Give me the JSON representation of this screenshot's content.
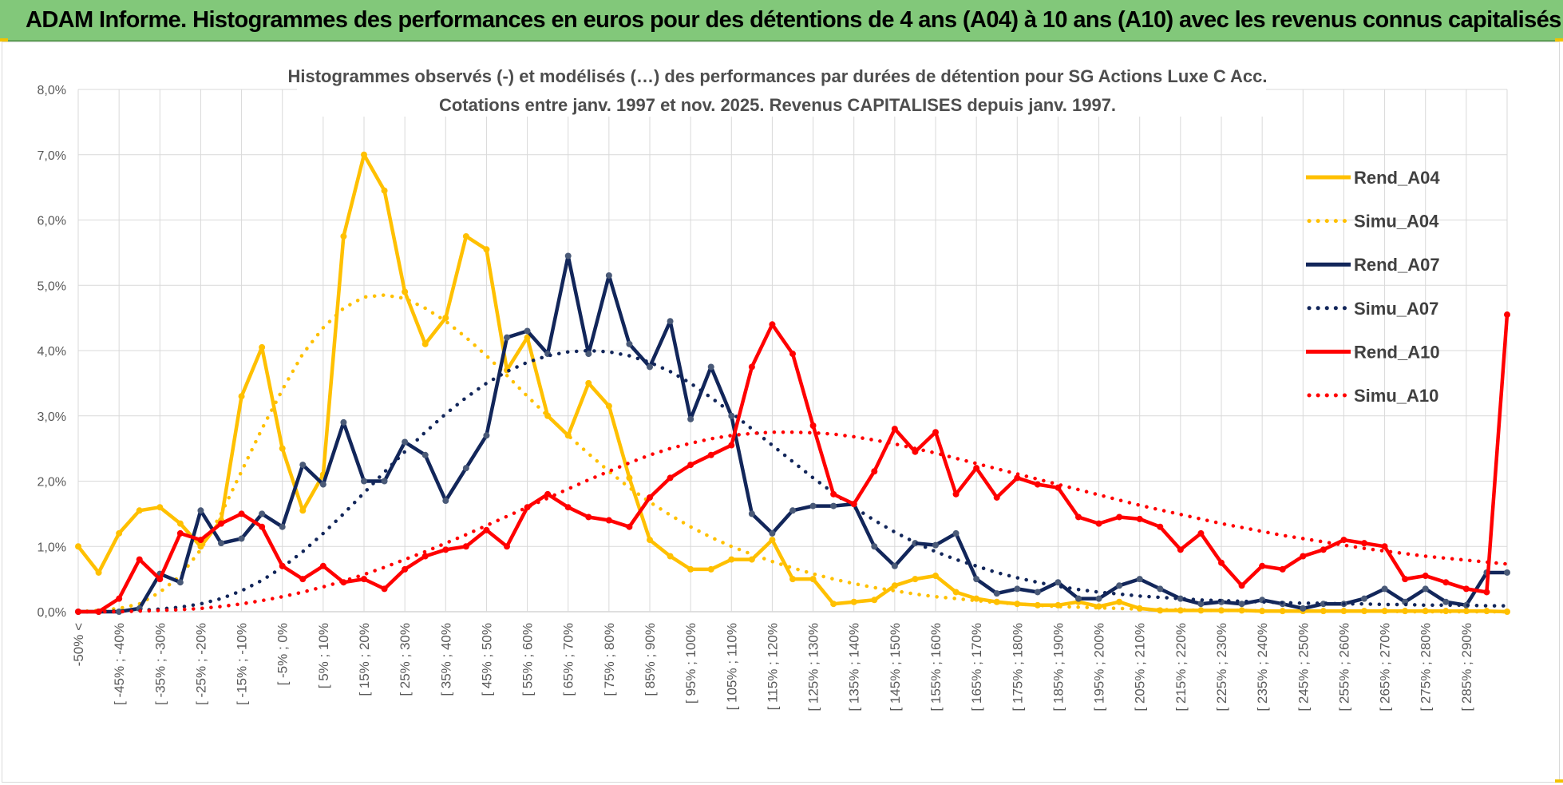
{
  "header": {
    "title": "ADAM Informe. Histogrammes des performances en euros pour des détentions de 4 ans (A04) à 10 ans (A10) avec les revenus connus capitalisés"
  },
  "chart_data": {
    "type": "line",
    "title_line1": "Histogrammes observés (-) et modélisés (…) des performances par durées de détention pour SG Actions Luxe C Acc.",
    "title_line2": "Cotations entre janv. 1997 et nov. 2025. Revenus CAPITALISES depuis janv. 1997.",
    "ylim": [
      0,
      8
    ],
    "yticks": [
      "0,0%",
      "1,0%",
      "2,0%",
      "3,0%",
      "4,0%",
      "5,0%",
      "6,0%",
      "7,0%",
      "8,0%"
    ],
    "x_labels": [
      "-50% <",
      "[ -45% ; -40%",
      "[ -35% ; -30%",
      "[ -25% ; -20%",
      "[ -15% ; -10%",
      "[ -5% ; 0%",
      "[ 5% ; 10%",
      "[ 15% ; 20%",
      "[ 25% ; 30%",
      "[ 35% ; 40%",
      "[ 45% ; 50%",
      "[ 55% ; 60%",
      "[ 65% ; 70%",
      "[ 75% ; 80%",
      "[ 85% ; 90%",
      "[ 95% ; 100%",
      "[ 105% ; 110%",
      "[ 115% ; 120%",
      "[ 125% ; 130%",
      "[ 135% ; 140%",
      "[ 145% ; 150%",
      "[ 155% ; 160%",
      "[ 165% ; 170%",
      "[ 175% ; 180%",
      "[ 185% ; 190%",
      "[ 195% ; 200%",
      "[ 205% ; 210%",
      "[ 215% ; 220%",
      "[ 225% ; 230%",
      "[ 235% ; 240%",
      "[ 245% ; 250%",
      "[ 255% ; 260%",
      "[ 265% ; 270%",
      "[ 275% ; 280%",
      "[ 285% ; 290%"
    ],
    "grid": true,
    "legend_position": "right",
    "series": [
      {
        "name": "Rend_A04",
        "style": "solid",
        "color": "#ffc000",
        "values": [
          1.0,
          0.6,
          1.2,
          1.55,
          1.6,
          1.35,
          1.0,
          1.4,
          3.3,
          4.05,
          2.5,
          1.55,
          2.1,
          5.75,
          7.0,
          6.45,
          4.9,
          4.1,
          4.5,
          5.75,
          5.55,
          3.7,
          4.2,
          3.0,
          2.7,
          3.5,
          3.15,
          2.05,
          1.1,
          0.85,
          0.65,
          0.65,
          0.8,
          0.8,
          1.1,
          0.5,
          0.5,
          0.12,
          0.15,
          0.18,
          0.4,
          0.5,
          0.55,
          0.3,
          0.2,
          0.15,
          0.12,
          0.1,
          0.1,
          0.15,
          0.08,
          0.15,
          0.05,
          0.02,
          0.02,
          0.02,
          0.02,
          0.02,
          0.01,
          0.01,
          0.01,
          0.01,
          0.01,
          0.01,
          0.01,
          0.01,
          0.01,
          0.01,
          0.01,
          0.01,
          0.0
        ]
      },
      {
        "name": "Simu_A04",
        "style": "dotted",
        "color": "#ffc000",
        "values": [
          0.0,
          0.02,
          0.05,
          0.12,
          0.3,
          0.55,
          0.95,
          1.5,
          2.15,
          2.8,
          3.4,
          3.95,
          4.35,
          4.65,
          4.82,
          4.85,
          4.8,
          4.65,
          4.45,
          4.2,
          3.92,
          3.62,
          3.3,
          3.0,
          2.7,
          2.42,
          2.15,
          1.9,
          1.68,
          1.48,
          1.3,
          1.14,
          1.0,
          0.88,
          0.77,
          0.67,
          0.58,
          0.5,
          0.43,
          0.37,
          0.32,
          0.27,
          0.23,
          0.2,
          0.17,
          0.14,
          0.12,
          0.1,
          0.08,
          0.07,
          0.06,
          0.05,
          0.04,
          0.03,
          0.03,
          0.02,
          0.02,
          0.02,
          0.01,
          0.01,
          0.01,
          0.01,
          0.01,
          0.01,
          0.01,
          0.0,
          0.0,
          0.0,
          0.0,
          0.0,
          0.0
        ]
      },
      {
        "name": "Rend_A07",
        "style": "solid",
        "color": "#12265a",
        "values": [
          0.0,
          0.0,
          0.0,
          0.05,
          0.58,
          0.45,
          1.55,
          1.05,
          1.12,
          1.5,
          1.3,
          2.25,
          1.95,
          2.9,
          2.0,
          2.0,
          2.6,
          2.4,
          1.7,
          2.2,
          2.7,
          4.2,
          4.3,
          3.95,
          5.45,
          3.95,
          5.15,
          4.1,
          3.75,
          4.45,
          2.95,
          3.75,
          3.0,
          1.5,
          1.2,
          1.55,
          1.62,
          1.62,
          1.65,
          1.0,
          0.7,
          1.05,
          1.02,
          1.2,
          0.5,
          0.28,
          0.35,
          0.3,
          0.45,
          0.2,
          0.2,
          0.4,
          0.5,
          0.35,
          0.2,
          0.12,
          0.15,
          0.12,
          0.18,
          0.12,
          0.05,
          0.12,
          0.12,
          0.2,
          0.35,
          0.15,
          0.35,
          0.15,
          0.1,
          0.6,
          0.6
        ]
      },
      {
        "name": "Simu_A07",
        "style": "dotted",
        "color": "#12265a",
        "values": [
          0.0,
          0.0,
          0.01,
          0.02,
          0.04,
          0.07,
          0.12,
          0.2,
          0.32,
          0.48,
          0.68,
          0.92,
          1.2,
          1.5,
          1.82,
          2.14,
          2.45,
          2.75,
          3.03,
          3.28,
          3.5,
          3.68,
          3.82,
          3.92,
          3.98,
          4.0,
          3.98,
          3.92,
          3.82,
          3.68,
          3.5,
          3.28,
          3.05,
          2.8,
          2.55,
          2.3,
          2.05,
          1.82,
          1.6,
          1.4,
          1.22,
          1.06,
          0.92,
          0.8,
          0.7,
          0.6,
          0.52,
          0.45,
          0.39,
          0.34,
          0.3,
          0.27,
          0.24,
          0.22,
          0.2,
          0.18,
          0.17,
          0.16,
          0.15,
          0.14,
          0.13,
          0.13,
          0.12,
          0.12,
          0.11,
          0.11,
          0.1,
          0.1,
          0.1,
          0.09,
          0.09
        ]
      },
      {
        "name": "Rend_A10",
        "style": "solid",
        "color": "#ff0000",
        "values": [
          0.0,
          0.0,
          0.2,
          0.8,
          0.5,
          1.2,
          1.1,
          1.35,
          1.5,
          1.3,
          0.7,
          0.5,
          0.7,
          0.45,
          0.5,
          0.35,
          0.65,
          0.85,
          0.95,
          1.0,
          1.25,
          1.0,
          1.6,
          1.8,
          1.6,
          1.45,
          1.4,
          1.3,
          1.75,
          2.05,
          2.25,
          2.4,
          2.55,
          3.75,
          4.4,
          3.95,
          2.85,
          1.8,
          1.65,
          2.15,
          2.8,
          2.45,
          2.75,
          1.8,
          2.2,
          1.75,
          2.05,
          1.95,
          1.9,
          1.45,
          1.35,
          1.45,
          1.42,
          1.3,
          0.95,
          1.2,
          0.75,
          0.4,
          0.7,
          0.65,
          0.85,
          0.95,
          1.1,
          1.05,
          1.0,
          0.5,
          0.55,
          0.45,
          0.35,
          0.3,
          4.55
        ]
      },
      {
        "name": "Simu_A10",
        "style": "dotted",
        "color": "#ff0000",
        "values": [
          0.0,
          0.0,
          0.0,
          0.01,
          0.02,
          0.03,
          0.05,
          0.08,
          0.12,
          0.17,
          0.23,
          0.3,
          0.38,
          0.47,
          0.57,
          0.68,
          0.8,
          0.92,
          1.05,
          1.18,
          1.32,
          1.46,
          1.6,
          1.74,
          1.88,
          2.02,
          2.15,
          2.28,
          2.4,
          2.5,
          2.58,
          2.65,
          2.7,
          2.73,
          2.75,
          2.75,
          2.74,
          2.72,
          2.68,
          2.63,
          2.57,
          2.5,
          2.43,
          2.35,
          2.27,
          2.19,
          2.11,
          2.03,
          1.95,
          1.87,
          1.79,
          1.71,
          1.63,
          1.56,
          1.49,
          1.42,
          1.35,
          1.29,
          1.23,
          1.17,
          1.12,
          1.07,
          1.02,
          0.97,
          0.93,
          0.89,
          0.85,
          0.82,
          0.79,
          0.76,
          0.73
        ]
      }
    ]
  }
}
